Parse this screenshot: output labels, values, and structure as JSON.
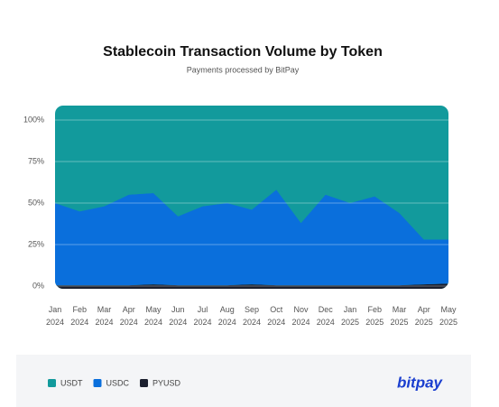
{
  "chart_data": {
    "type": "stacked-area-percent",
    "title": "Stablecoin Transaction Volume by Token",
    "subtitle": "Payments processed by BitPay",
    "categories": [
      "Jan 2024",
      "Feb 2024",
      "Mar 2024",
      "Apr 2024",
      "May 2024",
      "Jun 2024",
      "Jul 2024",
      "Aug 2024",
      "Sep 2024",
      "Oct 2024",
      "Nov 2024",
      "Dec 2024",
      "Jan 2025",
      "Feb 2025",
      "Mar 2025",
      "Apr 2025",
      "May 2025"
    ],
    "series": [
      {
        "name": "PYUSD",
        "color": "#1b1f2e",
        "values": [
          0.5,
          0.5,
          0.5,
          0.5,
          1,
          0.5,
          0.5,
          0.5,
          1,
          0.5,
          0.5,
          0.5,
          0.5,
          0.5,
          0.5,
          1,
          1.5
        ]
      },
      {
        "name": "USDC",
        "color": "#0a6fdc",
        "values": [
          49.5,
          44.5,
          47.5,
          54.5,
          55,
          41.5,
          47.5,
          49.5,
          45,
          57.5,
          37.5,
          54.5,
          49.5,
          53.5,
          43.5,
          27,
          26.5
        ]
      },
      {
        "name": "USDT",
        "color": "#129a9c",
        "values": [
          50,
          55,
          52,
          45,
          44,
          58,
          52,
          50,
          54,
          42,
          62,
          45,
          50,
          46,
          56,
          72,
          72
        ]
      }
    ],
    "legend_order": [
      "USDT",
      "USDC",
      "PYUSD"
    ],
    "ylim": [
      0,
      100
    ],
    "yticks": [
      {
        "value": 0,
        "label": "0%"
      },
      {
        "value": 25,
        "label": "25%"
      },
      {
        "value": 50,
        "label": "50%"
      },
      {
        "value": 75,
        "label": "75%"
      },
      {
        "value": 100,
        "label": "100%"
      }
    ],
    "grid": true,
    "logo": "bitpay"
  }
}
